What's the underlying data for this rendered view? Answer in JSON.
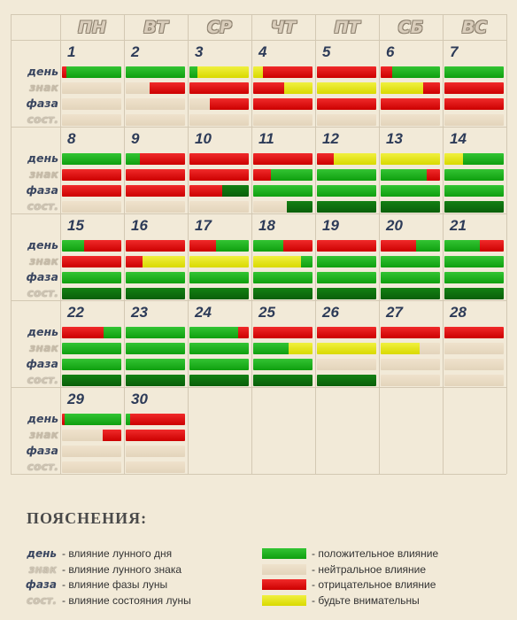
{
  "weekdays": [
    "ПН",
    "ВТ",
    "СР",
    "ЧТ",
    "ПТ",
    "СБ",
    "ВС"
  ],
  "row_labels": {
    "day": "день",
    "sign": "знак",
    "phase": "фаза",
    "state": "сост."
  },
  "colors": {
    "positive": "#12a612",
    "positive_dark": "#0b6a0b",
    "neutral": "#ebdcc4",
    "negative": "#e31010",
    "attention": "#e8e820"
  },
  "days": [
    {
      "n": "1",
      "col": 0,
      "row": 0,
      "bars": {
        "day": [
          [
            "r",
            0.08
          ],
          [
            "g",
            0.92
          ]
        ],
        "sign": [
          [
            "b",
            1
          ]
        ],
        "phase": [
          [
            "b",
            1
          ]
        ],
        "state": [
          [
            "b",
            1
          ]
        ]
      }
    },
    {
      "n": "2",
      "col": 1,
      "row": 0,
      "bars": {
        "day": [
          [
            "g",
            1
          ]
        ],
        "sign": [
          [
            "b",
            0.4
          ],
          [
            "r",
            0.6
          ]
        ],
        "phase": [
          [
            "b",
            1
          ]
        ],
        "state": [
          [
            "b",
            1
          ]
        ]
      }
    },
    {
      "n": "3",
      "col": 2,
      "row": 0,
      "bars": {
        "day": [
          [
            "g",
            0.14
          ],
          [
            "y",
            0.86
          ]
        ],
        "sign": [
          [
            "r",
            1
          ]
        ],
        "phase": [
          [
            "b",
            0.35
          ],
          [
            "r",
            0.65
          ]
        ],
        "state": [
          [
            "b",
            1
          ]
        ]
      }
    },
    {
      "n": "4",
      "col": 3,
      "row": 0,
      "bars": {
        "day": [
          [
            "y",
            0.16
          ],
          [
            "r",
            0.84
          ]
        ],
        "sign": [
          [
            "r",
            0.52
          ],
          [
            "y",
            0.48
          ]
        ],
        "phase": [
          [
            "r",
            1
          ]
        ],
        "state": [
          [
            "b",
            1
          ]
        ]
      }
    },
    {
      "n": "5",
      "col": 4,
      "row": 0,
      "bars": {
        "day": [
          [
            "r",
            1
          ]
        ],
        "sign": [
          [
            "y",
            1
          ]
        ],
        "phase": [
          [
            "r",
            1
          ]
        ],
        "state": [
          [
            "b",
            1
          ]
        ]
      }
    },
    {
      "n": "6",
      "col": 5,
      "row": 0,
      "bars": {
        "day": [
          [
            "r",
            0.2
          ],
          [
            "g",
            0.8
          ]
        ],
        "sign": [
          [
            "y",
            0.72
          ],
          [
            "r",
            0.28
          ]
        ],
        "phase": [
          [
            "r",
            1
          ]
        ],
        "state": [
          [
            "b",
            1
          ]
        ]
      }
    },
    {
      "n": "7",
      "col": 6,
      "row": 0,
      "bars": {
        "day": [
          [
            "g",
            1
          ]
        ],
        "sign": [
          [
            "r",
            1
          ]
        ],
        "phase": [
          [
            "r",
            1
          ]
        ],
        "state": [
          [
            "b",
            1
          ]
        ]
      }
    },
    {
      "n": "8",
      "col": 0,
      "row": 1,
      "bars": {
        "day": [
          [
            "g",
            1
          ]
        ],
        "sign": [
          [
            "r",
            1
          ]
        ],
        "phase": [
          [
            "r",
            1
          ]
        ],
        "state": [
          [
            "b",
            1
          ]
        ]
      }
    },
    {
      "n": "9",
      "col": 1,
      "row": 1,
      "bars": {
        "day": [
          [
            "g",
            0.24
          ],
          [
            "r",
            0.76
          ]
        ],
        "sign": [
          [
            "r",
            1
          ]
        ],
        "phase": [
          [
            "r",
            1
          ]
        ],
        "state": [
          [
            "b",
            1
          ]
        ]
      }
    },
    {
      "n": "10",
      "col": 2,
      "row": 1,
      "bars": {
        "day": [
          [
            "r",
            1
          ]
        ],
        "sign": [
          [
            "r",
            1
          ]
        ],
        "phase": [
          [
            "r",
            0.55
          ],
          [
            "dg",
            0.45
          ]
        ],
        "state": [
          [
            "b",
            1
          ]
        ]
      }
    },
    {
      "n": "11",
      "col": 3,
      "row": 1,
      "bars": {
        "day": [
          [
            "r",
            1
          ]
        ],
        "sign": [
          [
            "r",
            0.3
          ],
          [
            "g",
            0.7
          ]
        ],
        "phase": [
          [
            "g",
            1
          ]
        ],
        "state": [
          [
            "b",
            0.56
          ],
          [
            "dg",
            0.44
          ]
        ]
      }
    },
    {
      "n": "12",
      "col": 4,
      "row": 1,
      "bars": {
        "day": [
          [
            "r",
            0.28
          ],
          [
            "y",
            0.72
          ]
        ],
        "sign": [
          [
            "g",
            1
          ]
        ],
        "phase": [
          [
            "g",
            1
          ]
        ],
        "state": [
          [
            "dg",
            1
          ]
        ]
      }
    },
    {
      "n": "13",
      "col": 5,
      "row": 1,
      "bars": {
        "day": [
          [
            "y",
            1
          ]
        ],
        "sign": [
          [
            "g",
            0.77
          ],
          [
            "r",
            0.23
          ]
        ],
        "phase": [
          [
            "g",
            1
          ]
        ],
        "state": [
          [
            "dg",
            1
          ]
        ]
      }
    },
    {
      "n": "14",
      "col": 6,
      "row": 1,
      "bars": {
        "day": [
          [
            "y",
            0.32
          ],
          [
            "g",
            0.68
          ]
        ],
        "sign": [
          [
            "g",
            1
          ]
        ],
        "phase": [
          [
            "g",
            1
          ]
        ],
        "state": [
          [
            "dg",
            1
          ]
        ]
      }
    },
    {
      "n": "15",
      "col": 0,
      "row": 2,
      "bars": {
        "day": [
          [
            "g",
            0.38
          ],
          [
            "r",
            0.62
          ]
        ],
        "sign": [
          [
            "r",
            1
          ]
        ],
        "phase": [
          [
            "g",
            1
          ]
        ],
        "state": [
          [
            "dg",
            1
          ]
        ]
      }
    },
    {
      "n": "16",
      "col": 1,
      "row": 2,
      "bars": {
        "day": [
          [
            "r",
            1
          ]
        ],
        "sign": [
          [
            "r",
            0.28
          ],
          [
            "y",
            0.72
          ]
        ],
        "phase": [
          [
            "g",
            1
          ]
        ],
        "state": [
          [
            "dg",
            1
          ]
        ]
      }
    },
    {
      "n": "17",
      "col": 2,
      "row": 2,
      "bars": {
        "day": [
          [
            "r",
            0.45
          ],
          [
            "g",
            0.55
          ]
        ],
        "sign": [
          [
            "y",
            1
          ]
        ],
        "phase": [
          [
            "g",
            1
          ]
        ],
        "state": [
          [
            "dg",
            1
          ]
        ]
      }
    },
    {
      "n": "18",
      "col": 3,
      "row": 2,
      "bars": {
        "day": [
          [
            "g",
            0.5
          ],
          [
            "r",
            0.5
          ]
        ],
        "sign": [
          [
            "y",
            0.8
          ],
          [
            "g",
            0.2
          ]
        ],
        "phase": [
          [
            "g",
            1
          ]
        ],
        "state": [
          [
            "dg",
            1
          ]
        ]
      }
    },
    {
      "n": "19",
      "col": 4,
      "row": 2,
      "bars": {
        "day": [
          [
            "r",
            1
          ]
        ],
        "sign": [
          [
            "g",
            1
          ]
        ],
        "phase": [
          [
            "g",
            1
          ]
        ],
        "state": [
          [
            "dg",
            1
          ]
        ]
      }
    },
    {
      "n": "20",
      "col": 5,
      "row": 2,
      "bars": {
        "day": [
          [
            "r",
            0.6
          ],
          [
            "g",
            0.4
          ]
        ],
        "sign": [
          [
            "g",
            1
          ]
        ],
        "phase": [
          [
            "g",
            1
          ]
        ],
        "state": [
          [
            "dg",
            1
          ]
        ]
      }
    },
    {
      "n": "21",
      "col": 6,
      "row": 2,
      "bars": {
        "day": [
          [
            "g",
            0.6
          ],
          [
            "r",
            0.4
          ]
        ],
        "sign": [
          [
            "g",
            1
          ]
        ],
        "phase": [
          [
            "g",
            1
          ]
        ],
        "state": [
          [
            "dg",
            1
          ]
        ]
      }
    },
    {
      "n": "22",
      "col": 0,
      "row": 3,
      "bars": {
        "day": [
          [
            "r",
            0.7
          ],
          [
            "g",
            0.3
          ]
        ],
        "sign": [
          [
            "g",
            1
          ]
        ],
        "phase": [
          [
            "g",
            1
          ]
        ],
        "state": [
          [
            "dg",
            1
          ]
        ]
      }
    },
    {
      "n": "23",
      "col": 1,
      "row": 3,
      "bars": {
        "day": [
          [
            "g",
            1
          ]
        ],
        "sign": [
          [
            "g",
            1
          ]
        ],
        "phase": [
          [
            "g",
            1
          ]
        ],
        "state": [
          [
            "dg",
            1
          ]
        ]
      }
    },
    {
      "n": "24",
      "col": 2,
      "row": 3,
      "bars": {
        "day": [
          [
            "g",
            0.82
          ],
          [
            "r",
            0.18
          ]
        ],
        "sign": [
          [
            "g",
            1
          ]
        ],
        "phase": [
          [
            "g",
            1
          ]
        ],
        "state": [
          [
            "dg",
            1
          ]
        ]
      }
    },
    {
      "n": "25",
      "col": 3,
      "row": 3,
      "bars": {
        "day": [
          [
            "r",
            1
          ]
        ],
        "sign": [
          [
            "g",
            0.6
          ],
          [
            "y",
            0.4
          ]
        ],
        "phase": [
          [
            "g",
            1
          ]
        ],
        "state": [
          [
            "dg",
            1
          ]
        ]
      }
    },
    {
      "n": "26",
      "col": 4,
      "row": 3,
      "bars": {
        "day": [
          [
            "r",
            1
          ]
        ],
        "sign": [
          [
            "y",
            1
          ]
        ],
        "phase": [
          [
            "b",
            1
          ]
        ],
        "state": [
          [
            "dg",
            1
          ]
        ]
      }
    },
    {
      "n": "27",
      "col": 5,
      "row": 3,
      "bars": {
        "day": [
          [
            "r",
            1
          ]
        ],
        "sign": [
          [
            "y",
            0.65
          ],
          [
            "b",
            0.35
          ]
        ],
        "phase": [
          [
            "b",
            1
          ]
        ],
        "state": [
          [
            "b",
            1
          ]
        ]
      }
    },
    {
      "n": "28",
      "col": 6,
      "row": 3,
      "bars": {
        "day": [
          [
            "r",
            1
          ]
        ],
        "sign": [
          [
            "b",
            1
          ]
        ],
        "phase": [
          [
            "b",
            1
          ]
        ],
        "state": [
          [
            "b",
            1
          ]
        ]
      }
    },
    {
      "n": "29",
      "col": 0,
      "row": 4,
      "bars": {
        "day": [
          [
            "r",
            0.05
          ],
          [
            "g",
            0.95
          ]
        ],
        "sign": [
          [
            "b",
            0.68
          ],
          [
            "r",
            0.32
          ]
        ],
        "phase": [
          [
            "b",
            1
          ]
        ],
        "state": [
          [
            "b",
            1
          ]
        ]
      }
    },
    {
      "n": "30",
      "col": 1,
      "row": 4,
      "bars": {
        "day": [
          [
            "g",
            0.07
          ],
          [
            "r",
            0.93
          ]
        ],
        "sign": [
          [
            "r",
            1
          ]
        ],
        "phase": [
          [
            "b",
            1
          ]
        ],
        "state": [
          [
            "b",
            1
          ]
        ]
      }
    }
  ],
  "legend": {
    "title": "ПОЯСНЕНИЯ:",
    "labels": [
      {
        "key": "day",
        "text": "день",
        "desc": "- влияние лунного дня"
      },
      {
        "key": "sign",
        "text": "знак",
        "desc": "- влияние лунного знака"
      },
      {
        "key": "phase",
        "text": "фаза",
        "desc": "- влияние фазы луны"
      },
      {
        "key": "state",
        "text": "сост.",
        "desc": "- влияние состояния луны"
      }
    ],
    "colors": [
      {
        "key": "g",
        "desc": "- положительное влияние"
      },
      {
        "key": "b",
        "desc": "- нейтральное влияние"
      },
      {
        "key": "r",
        "desc": "- отрицательное влияние"
      },
      {
        "key": "y",
        "desc": "- будьте внимательны"
      }
    ]
  }
}
